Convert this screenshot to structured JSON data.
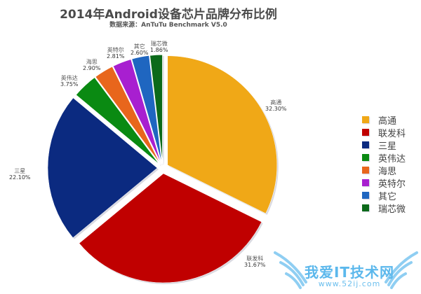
{
  "chart": {
    "title": "2014年Android设备芯片品牌分布比例",
    "subtitle": "数据来源：AnTuTu Benchmark V5.0"
  },
  "watermark": {
    "text": "我爱IT技术网",
    "url": "www.52ij.com"
  },
  "chart_data": {
    "type": "pie",
    "title": "2014年Android设备芯片品牌分布比例",
    "subtitle": "数据来源：AnTuTu Benchmark V5.0",
    "categories": [
      "高通",
      "联发科",
      "三星",
      "英伟达",
      "海思",
      "英特尔",
      "其它",
      "瑞芯微"
    ],
    "values": [
      32.3,
      31.67,
      22.1,
      3.75,
      2.9,
      2.81,
      2.6,
      1.86
    ],
    "labels": [
      "32.30%",
      "31.67%",
      "22.10%",
      "3.75%",
      "2.90%",
      "2.81%",
      "2.60%",
      "1.86%"
    ],
    "colors": [
      "#f0a817",
      "#c00000",
      "#0b2a80",
      "#0a8a12",
      "#e8661c",
      "#a81fd0",
      "#1f66c0",
      "#0b6a1a"
    ],
    "start_angle": "12 o'clock, clockwise",
    "legend_position": "right",
    "exploded": true
  },
  "legend": {
    "items": [
      {
        "label": "高通",
        "color": "#f0a817"
      },
      {
        "label": "联发科",
        "color": "#c00000"
      },
      {
        "label": "三星",
        "color": "#0b2a80"
      },
      {
        "label": "英伟达",
        "color": "#0a8a12"
      },
      {
        "label": "海思",
        "color": "#e8661c"
      },
      {
        "label": "英特尔",
        "color": "#a81fd0"
      },
      {
        "label": "其它",
        "color": "#1f66c0"
      },
      {
        "label": "瑞芯微",
        "color": "#0b6a1a"
      }
    ]
  },
  "slice_labels": [
    {
      "name": "高通",
      "pct": "32.30%"
    },
    {
      "name": "联发科",
      "pct": "31.67%"
    },
    {
      "name": "三星",
      "pct": "22.10%"
    },
    {
      "name": "英伟达",
      "pct": "3.75%"
    },
    {
      "name": "海思",
      "pct": "2.90%"
    },
    {
      "name": "英特尔",
      "pct": "2.81%"
    },
    {
      "name": "其它",
      "pct": "2.60%"
    },
    {
      "name": "瑞芯微",
      "pct": "1.86%"
    }
  ]
}
